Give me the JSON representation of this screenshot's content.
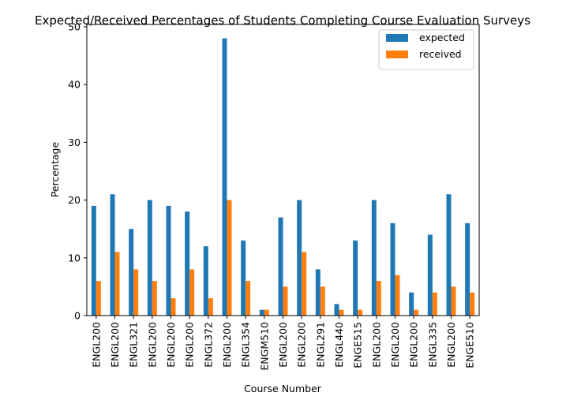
{
  "chart_data": {
    "type": "bar",
    "title": "Expected/Received Percentages of Students Completing Course Evaluation Surveys",
    "xlabel": "Course Number",
    "ylabel": "Percentage",
    "ylim": [
      0,
      50.4
    ],
    "yticks": [
      0,
      10,
      20,
      30,
      40,
      50
    ],
    "grid": false,
    "legend_position": "top-right",
    "categories": [
      "ENGL200",
      "ENGL200",
      "ENGL321",
      "ENGL200",
      "ENGL200",
      "ENGL200",
      "ENGL372",
      "ENGL200",
      "ENGL354",
      "ENGM510",
      "ENGL200",
      "ENGL200",
      "ENGL291",
      "ENGL440",
      "ENGE515",
      "ENGL200",
      "ENGL200",
      "ENGL200",
      "ENGL335",
      "ENGL200",
      "ENGE510"
    ],
    "series": [
      {
        "name": "expected",
        "color": "#1f77b4",
        "values": [
          19,
          21,
          15,
          20,
          19,
          18,
          12,
          48,
          13,
          1,
          17,
          20,
          8,
          2,
          13,
          20,
          16,
          4,
          14,
          21,
          16
        ]
      },
      {
        "name": "received",
        "color": "#ff7f0e",
        "values": [
          6,
          11,
          8,
          6,
          3,
          8,
          3,
          20,
          6,
          1,
          5,
          11,
          5,
          1,
          1,
          6,
          7,
          1,
          4,
          5,
          4
        ]
      }
    ]
  }
}
